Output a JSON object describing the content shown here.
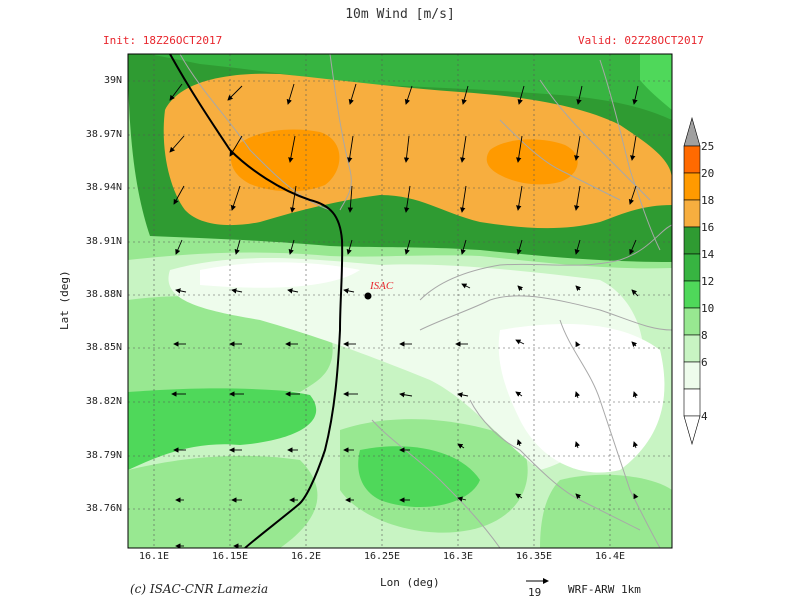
{
  "title": "10m Wind [m/s]",
  "init_label": "Init: 18Z26OCT2017",
  "valid_label": "Valid: 02Z28OCT2017",
  "y_axis_label": "Lat (deg)",
  "x_axis_label": "Lon (deg)",
  "copyright": "(c) ISAC-CNR Lamezia",
  "model_label": "WRF-ARW 1km",
  "reference_vector": {
    "value": "19"
  },
  "station": {
    "name": "ISAC",
    "lon": 16.225,
    "lat": 38.875
  },
  "y_ticks": [
    "39N",
    "38.97N",
    "38.94N",
    "38.91N",
    "38.88N",
    "38.85N",
    "38.82N",
    "38.79N",
    "38.76N"
  ],
  "x_ticks": [
    "16.1E",
    "16.15E",
    "16.2E",
    "16.25E",
    "16.3E",
    "16.35E",
    "16.4E"
  ],
  "colorbar": {
    "levels": [
      "25",
      "20",
      "18",
      "16",
      "14",
      "12",
      "10",
      "8",
      "6",
      "4"
    ],
    "colors": [
      "#ff6a00",
      "#ff9a00",
      "#f7ae3f",
      "#2f9b32",
      "#37b441",
      "#4fd85a",
      "#98e891",
      "#c8f4c3",
      "#eefcec"
    ],
    "over_color": "#a0a0a0"
  },
  "legend_icons": [
    "vector-arrow-icon"
  ]
}
